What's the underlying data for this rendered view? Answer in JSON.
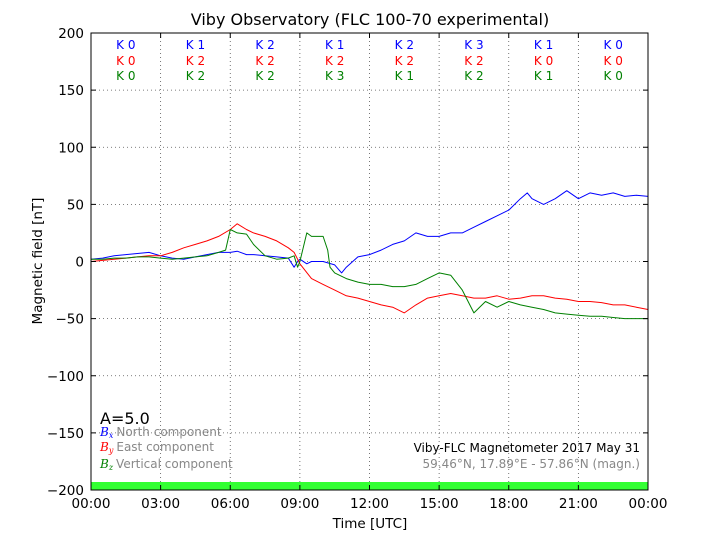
{
  "chart_data": {
    "type": "line",
    "title": "Viby Observatory (FLC 100-70 experimental)",
    "xlabel": "Time [UTC]",
    "ylabel": "Magnetic field [nT]",
    "xlim": [
      0,
      24
    ],
    "ylim": [
      -200,
      200
    ],
    "x_ticks": [
      "00:00",
      "03:00",
      "06:00",
      "09:00",
      "12:00",
      "15:00",
      "18:00",
      "21:00",
      "00:00"
    ],
    "y_ticks": [
      "200",
      "150",
      "100",
      "50",
      "0",
      "−50",
      "−100",
      "−150",
      "−200"
    ],
    "grid": true,
    "colors": {
      "north": "#0000ff",
      "east": "#ff0000",
      "vertical": "#008000",
      "quiet_bar": "#33ff33"
    },
    "a_index": "A=5.0",
    "k_indices": {
      "north": [
        "K 0",
        "K 1",
        "K 2",
        "K 1",
        "K 2",
        "K 3",
        "K 1",
        "K 0"
      ],
      "east": [
        "K 0",
        "K 2",
        "K 2",
        "K 2",
        "K 2",
        "K 2",
        "K 0",
        "K 0"
      ],
      "vertical": [
        "K 0",
        "K 2",
        "K 2",
        "K 3",
        "K 1",
        "K 2",
        "K 1",
        "K 0"
      ]
    },
    "legend": {
      "placement": "lower-left",
      "north": {
        "symbol": "B",
        "sub": "x",
        "text": "North component"
      },
      "east": {
        "symbol": "B",
        "sub": "y",
        "text": "East component"
      },
      "vertical": {
        "symbol": "B",
        "sub": "z",
        "text": "Vertical component"
      }
    },
    "info": {
      "line1": "Viby-FLC Magnetometer 2017 May 31",
      "line2": "59.46°N, 17.89°E - 57.86°N (magn.)"
    },
    "series": [
      {
        "key": "north",
        "x": [
          0,
          0.5,
          1,
          1.5,
          2,
          2.5,
          3,
          3.5,
          4,
          4.5,
          5,
          5.5,
          6,
          6.3,
          6.7,
          7,
          7.5,
          8,
          8.5,
          8.75,
          8.9,
          9.0,
          9.3,
          9.5,
          10,
          10.5,
          10.8,
          11,
          11.5,
          12,
          12.5,
          13,
          13.5,
          14,
          14.5,
          15,
          15.5,
          16,
          16.5,
          17,
          17.5,
          18,
          18.5,
          18.8,
          19,
          19.5,
          20,
          20.5,
          21,
          21.5,
          22,
          22.5,
          23,
          23.5,
          24
        ],
        "values": [
          2,
          3,
          5,
          6,
          7,
          8,
          5,
          3,
          2,
          4,
          6,
          8,
          8,
          9,
          6,
          6,
          5,
          4,
          3,
          -5,
          0,
          2,
          -2,
          0,
          0,
          -3,
          -10,
          -5,
          4,
          6,
          10,
          15,
          18,
          25,
          22,
          22,
          25,
          25,
          30,
          35,
          40,
          45,
          55,
          60,
          55,
          50,
          55,
          62,
          55,
          60,
          58,
          60,
          57,
          58,
          57
        ]
      },
      {
        "key": "east",
        "x": [
          0,
          0.5,
          1,
          1.5,
          2,
          2.5,
          3,
          3.5,
          4,
          4.5,
          5,
          5.5,
          6,
          6.3,
          6.7,
          7,
          7.5,
          8,
          8.5,
          8.75,
          8.9,
          9.0,
          9.5,
          10,
          10.5,
          11,
          11.5,
          12,
          12.5,
          13,
          13.5,
          14,
          14.5,
          15,
          15.5,
          16,
          16.5,
          17,
          17.5,
          18,
          18.5,
          19,
          19.5,
          20,
          20.5,
          21,
          21.5,
          22,
          22.5,
          23,
          23.5,
          24
        ],
        "values": [
          0,
          1,
          2,
          3,
          4,
          5,
          5,
          8,
          12,
          15,
          18,
          22,
          28,
          33,
          28,
          25,
          22,
          18,
          12,
          8,
          2,
          -2,
          -15,
          -20,
          -25,
          -30,
          -32,
          -35,
          -38,
          -40,
          -45,
          -38,
          -32,
          -30,
          -28,
          -30,
          -32,
          -32,
          -30,
          -33,
          -32,
          -30,
          -30,
          -32,
          -33,
          -35,
          -35,
          -36,
          -38,
          -38,
          -40,
          -42
        ]
      },
      {
        "key": "vertical",
        "x": [
          0,
          0.5,
          1,
          1.5,
          2,
          2.5,
          3,
          3.5,
          4,
          4.5,
          5,
          5.5,
          5.8,
          6,
          6.3,
          6.7,
          7,
          7.5,
          8,
          8.5,
          8.75,
          8.9,
          9.0,
          9.3,
          9.5,
          10,
          10.2,
          10.3,
          10.5,
          11,
          11.5,
          12,
          12.5,
          13,
          13.5,
          14,
          14.5,
          15,
          15.5,
          16,
          16.5,
          17,
          17.5,
          18,
          18.5,
          19,
          19.5,
          20,
          20.5,
          21,
          21.5,
          22,
          22.5,
          23,
          23.5,
          24
        ],
        "values": [
          2,
          2,
          3,
          3,
          4,
          4,
          3,
          2,
          3,
          4,
          5,
          8,
          10,
          28,
          25,
          24,
          15,
          5,
          2,
          3,
          5,
          -5,
          0,
          25,
          22,
          22,
          10,
          -5,
          -10,
          -15,
          -18,
          -20,
          -20,
          -22,
          -22,
          -20,
          -15,
          -10,
          -12,
          -25,
          -45,
          -35,
          -40,
          -35,
          -38,
          -40,
          -42,
          -45,
          -46,
          -47,
          -48,
          -48,
          -49,
          -50,
          -50,
          -50
        ]
      }
    ]
  }
}
